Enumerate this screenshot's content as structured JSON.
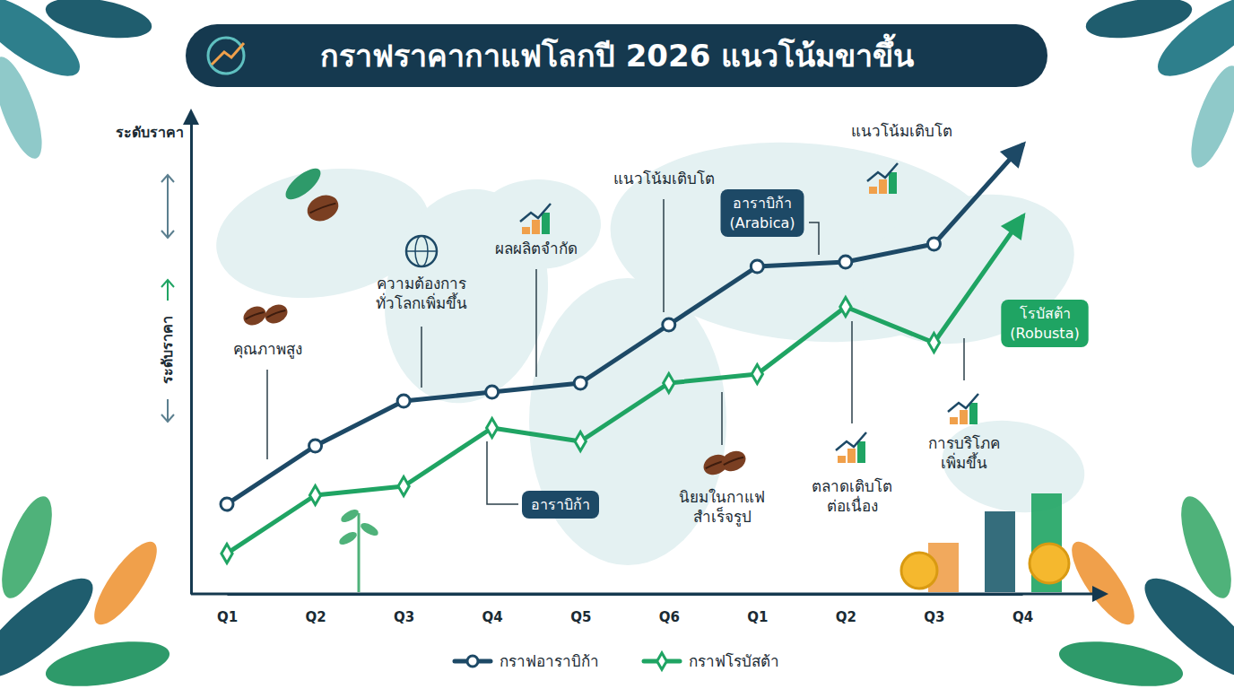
{
  "chart_data": {
    "type": "line",
    "title": "กราฟราคากาแฟโลกปี 2026 แนวโน้มขาขึ้น",
    "y_label": "ระดับราคา",
    "categories": [
      "Q1",
      "Q2",
      "Q3",
      "Q4",
      "Q5",
      "Q6",
      "Q1",
      "Q2",
      "Q3",
      "Q4"
    ],
    "series": [
      {
        "name": "กราฟอาราบิก้า",
        "color": "#1d4966",
        "marker": "circle",
        "values": [
          20,
          33,
          43,
          45,
          47,
          60,
          73,
          74,
          78,
          100
        ]
      },
      {
        "name": "กราฟโรบัสต้า",
        "color": "#1fa463",
        "marker": "diamond",
        "values": [
          9,
          22,
          24,
          37,
          34,
          47,
          49,
          64,
          56,
          84
        ]
      }
    ],
    "ylim": [
      0,
      105
    ],
    "tick_labels": "x",
    "legend": "bottom",
    "annotations": [
      "คุณภาพสูง",
      "ความต้องการ\nทั่วโลกเพิ่มขึ้น",
      "ผลผลิตจำกัด",
      "แนวโน้มเติบโต",
      "อาราบิก้า\n(Arabica)",
      "แนวโน้มเติบโต",
      "โรบัสต้า\n(Robusta)",
      "อาราบิก้า",
      "นิยมในกาแฟ\nสำเร็จรูป",
      "ตลาดเติบโต\nต่อเนื่อง",
      "การบริโภค\nเพิ่มขึ้น"
    ]
  }
}
